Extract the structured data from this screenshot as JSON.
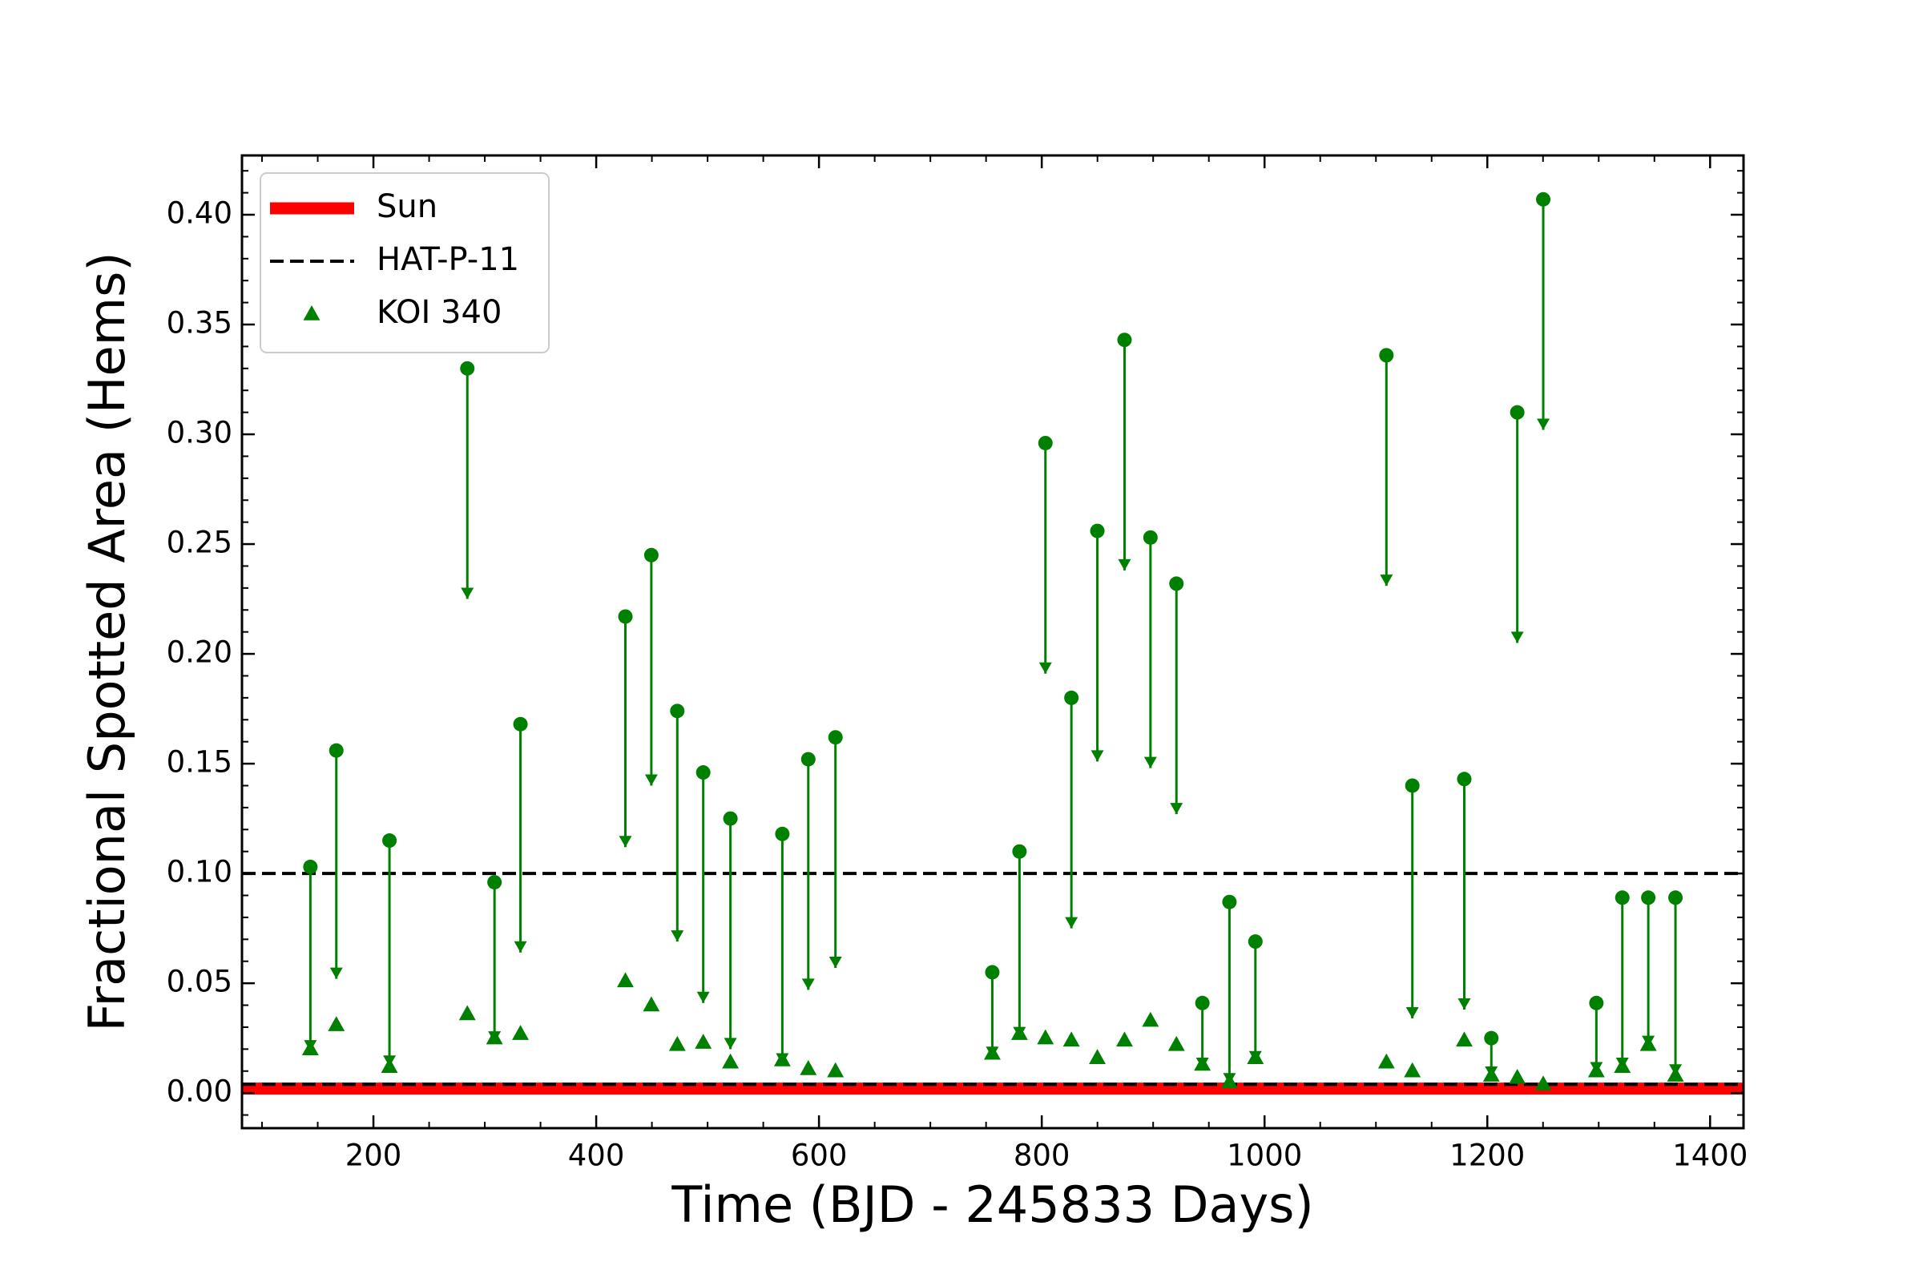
{
  "chart_data": {
    "type": "scatter",
    "xlabel": "Time (BJD - 245833 Days)",
    "ylabel": "Fractional Spotted Area (Hems)",
    "xlim": [
      82,
      1430
    ],
    "ylim": [
      -0.016,
      0.427
    ],
    "xticks": [
      200,
      400,
      600,
      800,
      1000,
      1200,
      1400
    ],
    "yticks": [
      {
        "value": 0,
        "label": "0.00"
      },
      {
        "value": 0.05,
        "label": "0.05"
      },
      {
        "value": 0.1,
        "label": "0.10"
      },
      {
        "value": 0.15,
        "label": "0.15"
      },
      {
        "value": 0.2,
        "label": "0.20"
      },
      {
        "value": 0.25,
        "label": "0.25"
      },
      {
        "value": 0.3,
        "label": "0.30"
      },
      {
        "value": 0.35,
        "label": "0.35"
      },
      {
        "value": 0.4,
        "label": "0.40"
      }
    ],
    "minor_ticks": true,
    "legend": "upper left",
    "x": [
      143.4,
      166.7,
      214.4,
      284.3,
      308.7,
      332,
      426.2,
      449.5,
      472.8,
      496.1,
      520.5,
      567.1,
      590.4,
      614.8,
      755.6,
      780,
      803.3,
      826.6,
      849.9,
      874.3,
      897.6,
      920.9,
      944.2,
      968.5,
      991.8,
      1109.4,
      1132.7,
      1179.3,
      1203.6,
      1226.9,
      1250.2,
      1297.9,
      1321.2,
      1344.5,
      1368.9
    ],
    "reference_lines": [
      {
        "name": "Sun",
        "color": "#ff0000",
        "style": "solid",
        "values": [
          0.002
        ]
      },
      {
        "name": "HAT-P-11",
        "color": "#000000",
        "style": "dashed",
        "values": [
          0.1,
          0.004
        ]
      }
    ],
    "upper_limits": {
      "color": "#008000",
      "values": [
        0.103,
        0.156,
        0.115,
        0.33,
        0.096,
        0.168,
        0.217,
        0.245,
        0.174,
        0.146,
        0.125,
        0.118,
        0.152,
        0.162,
        0.055,
        0.11,
        0.296,
        0.18,
        0.256,
        0.343,
        0.253,
        0.232,
        0.041,
        0.087,
        0.069,
        0.336,
        0.14,
        0.143,
        0.025,
        0.31,
        0.407,
        0.041,
        0.089,
        0.089,
        0.089
      ],
      "arrow_ends": [
        0.019,
        0.052,
        0.012,
        0.225,
        0.023,
        0.064,
        0.112,
        0.14,
        0.069,
        0.041,
        0.02,
        0.013,
        0.047,
        0.057,
        0.016,
        0.025,
        0.191,
        0.075,
        0.151,
        0.238,
        0.148,
        0.127,
        0.011,
        0.004,
        0.014,
        0.231,
        0.034,
        0.038,
        0.007,
        0.205,
        0.302,
        0.009,
        0.011,
        0.021,
        0.008
      ]
    },
    "series": [
      {
        "name": "KOI 340",
        "color": "#008000",
        "marker": "triangle",
        "values": [
          0.02,
          0.031,
          0.012,
          0.036,
          0.025,
          0.027,
          0.051,
          0.04,
          0.022,
          0.023,
          0.014,
          0.015,
          0.011,
          0.01,
          0.018,
          0.027,
          0.025,
          0.024,
          0.016,
          0.024,
          0.033,
          0.022,
          0.013,
          0.005,
          0.016,
          0.014,
          0.01,
          0.024,
          0.008,
          0.007,
          0.004,
          0.01,
          0.012,
          0.022,
          0.008
        ]
      }
    ]
  }
}
